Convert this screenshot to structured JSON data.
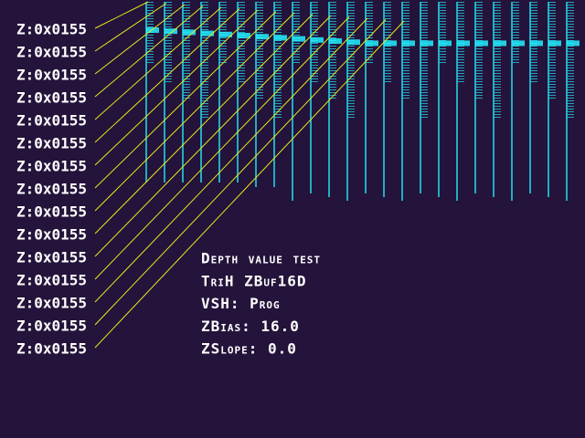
{
  "labels": [
    "Z:0x0155",
    "Z:0x0155",
    "Z:0x0155",
    "Z:0x0155",
    "Z:0x0155",
    "Z:0x0155",
    "Z:0x0155",
    "Z:0x0155",
    "Z:0x0155",
    "Z:0x0155",
    "Z:0x0155",
    "Z:0x0155",
    "Z:0x0155",
    "Z:0x0155",
    "Z:0x0155"
  ],
  "info": [
    "Depth value test",
    "TriH ZBuf16D",
    "VSH: Prog",
    "ZBias: 16.0",
    "ZSlope: 0.0"
  ]
}
